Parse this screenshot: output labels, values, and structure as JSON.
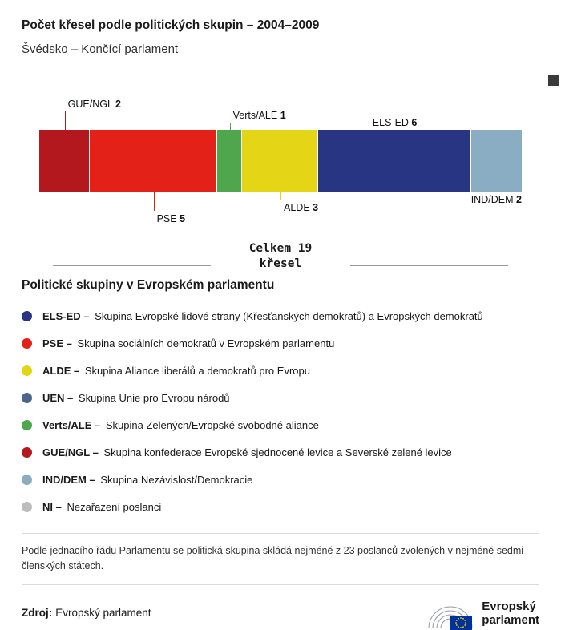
{
  "header": {
    "title": "Počet křesel podle politických skupin – 2004–2009",
    "subtitle": "Švédsko – Končící parlament"
  },
  "chart_data": {
    "type": "bar",
    "title": "Počet křesel podle politických skupin – 2004–2009",
    "subtitle": "Švédsko – Končící parlament",
    "total_seats": 19,
    "segments": [
      {
        "group": "GUE/NGL",
        "seats": 2,
        "color": "#b2181e",
        "callout": {
          "side": "top",
          "line": 23
        }
      },
      {
        "group": "PSE",
        "seats": 5,
        "color": "#e32119",
        "callout": {
          "side": "bottom",
          "line": 24
        }
      },
      {
        "group": "Verts/ALE",
        "seats": 1,
        "color": "#4fa64d",
        "callout": {
          "side": "top",
          "line": 9
        }
      },
      {
        "group": "ALDE",
        "seats": 3,
        "color": "#e4d616",
        "callout": {
          "side": "bottom",
          "line": 10
        }
      },
      {
        "group": "ELS-ED",
        "seats": 6,
        "color": "#283583",
        "callout": {
          "side": "top",
          "line": 0
        }
      },
      {
        "group": "IND/DEM",
        "seats": 2,
        "color": "#8badc4",
        "callout": {
          "side": "bottom",
          "line": 0
        }
      }
    ]
  },
  "total": {
    "line1": "Celkem 19",
    "line2": "křesel"
  },
  "legend": {
    "heading": "Politické skupiny v Evropském parlamentu",
    "items": [
      {
        "key": "els-ed",
        "label": "ELS-ED –",
        "color": "#283583",
        "desc": "Skupina Evropské lidové strany (Křesťanských demokratů) a Evropských demokratů"
      },
      {
        "key": "pse",
        "label": "PSE –",
        "color": "#e32119",
        "desc": "Skupina sociálních demokratů v Evropském parlamentu"
      },
      {
        "key": "alde",
        "label": "ALDE –",
        "color": "#e4d616",
        "desc": "Skupina Aliance liberálů a demokratů pro Evropu"
      },
      {
        "key": "uen",
        "label": "UEN –",
        "color": "#4d648c",
        "desc": "Skupina Unie pro Evropu národů"
      },
      {
        "key": "verts-ale",
        "label": "Verts/ALE –",
        "color": "#4fa64d",
        "desc": "Skupina Zelených/Evropské svobodné aliance"
      },
      {
        "key": "gue-ngl",
        "label": "GUE/NGL –",
        "color": "#b2181e",
        "desc": "Skupina konfederace Evropské sjednocené levice a Severské zelené levice"
      },
      {
        "key": "ind-dem",
        "label": "IND/DEM –",
        "color": "#8badc4",
        "desc": "Skupina Nezávislost/Demokracie"
      },
      {
        "key": "ni",
        "label": "NI –",
        "color": "#bdbdbd",
        "desc": "Nezařazení poslanci"
      }
    ]
  },
  "footnote": "Podle jednacího řádu Parlamentu se politická skupina skládá nejméně z 23 poslanců zvolených v nejméně sedmi členských státech.",
  "source": {
    "label": "Zdroj:",
    "value": "Evropský parlament"
  },
  "logo": {
    "line1": "Evropský",
    "line2": "parlament"
  }
}
